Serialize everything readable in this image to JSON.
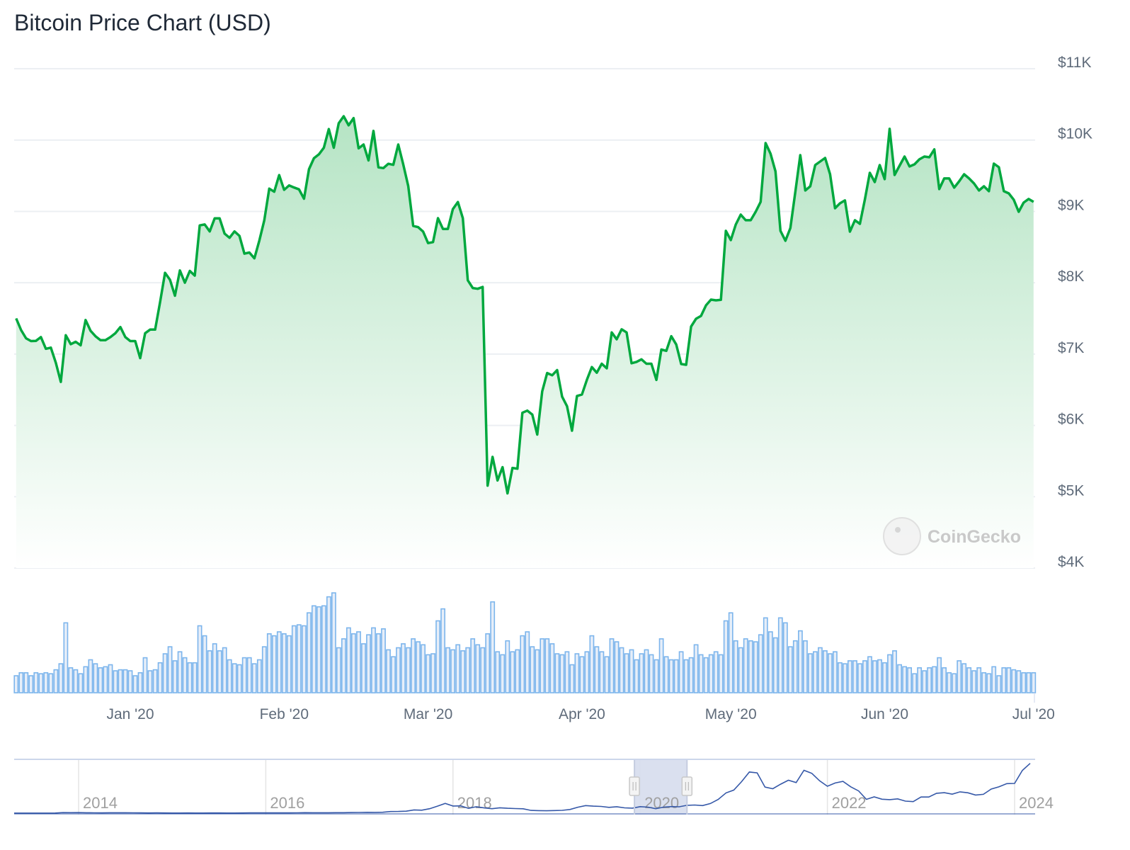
{
  "title": "Bitcoin Price Chart (USD)",
  "watermark": "CoinGecko",
  "colors": {
    "price_line": "#00a83e",
    "area_top": "#b5e4c4",
    "volume_stroke": "#7cb5ec",
    "volume_fill": "#e6eef9",
    "navigator_line": "#3558a8",
    "navigator_selection": "#d6dded",
    "grid": "#eceff3",
    "axis_text": "#5f6b7a"
  },
  "chart_data": [
    {
      "type": "area",
      "title": "Bitcoin Price Chart (USD)",
      "xlabel": "",
      "ylabel": "",
      "ylim": [
        4000,
        11000
      ],
      "y_ticks": [
        "$11K",
        "$10K",
        "$9K",
        "$8K",
        "$7K",
        "$6K",
        "$5K",
        "$4K"
      ],
      "y_tick_values": [
        11000,
        10000,
        9000,
        8000,
        7000,
        6000,
        5000,
        4000
      ],
      "x_ticks": [
        "Jan '20",
        "Feb '20",
        "Mar '20",
        "Apr '20",
        "May '20",
        "Jun '20",
        "Jul '20"
      ],
      "x_tick_dates": [
        "2020-01-01",
        "2020-02-01",
        "2020-03-01",
        "2020-04-01",
        "2020-05-01",
        "2020-06-01",
        "2020-07-01"
      ],
      "xlim": [
        "2019-12-09",
        "2020-07-01"
      ],
      "grid": true,
      "y_axis_side": "right",
      "dates": [
        "2019-12-09",
        "2019-12-10",
        "2019-12-11",
        "2019-12-12",
        "2019-12-13",
        "2019-12-14",
        "2019-12-15",
        "2019-12-16",
        "2019-12-17",
        "2019-12-18",
        "2019-12-19",
        "2019-12-20",
        "2019-12-21",
        "2019-12-22",
        "2019-12-23",
        "2019-12-24",
        "2019-12-25",
        "2019-12-26",
        "2019-12-27",
        "2019-12-28",
        "2019-12-29",
        "2019-12-30",
        "2019-12-31",
        "2020-01-01",
        "2020-01-02",
        "2020-01-03",
        "2020-01-04",
        "2020-01-05",
        "2020-01-06",
        "2020-01-07",
        "2020-01-08",
        "2020-01-09",
        "2020-01-10",
        "2020-01-11",
        "2020-01-12",
        "2020-01-13",
        "2020-01-14",
        "2020-01-15",
        "2020-01-16",
        "2020-01-17",
        "2020-01-18",
        "2020-01-19",
        "2020-01-20",
        "2020-01-21",
        "2020-01-22",
        "2020-01-23",
        "2020-01-24",
        "2020-01-25",
        "2020-01-26",
        "2020-01-27",
        "2020-01-28",
        "2020-01-29",
        "2020-01-30",
        "2020-01-31",
        "2020-02-01",
        "2020-02-02",
        "2020-02-03",
        "2020-02-04",
        "2020-02-05",
        "2020-02-06",
        "2020-02-07",
        "2020-02-08",
        "2020-02-09",
        "2020-02-10",
        "2020-02-11",
        "2020-02-12",
        "2020-02-13",
        "2020-02-14",
        "2020-02-15",
        "2020-02-16",
        "2020-02-17",
        "2020-02-18",
        "2020-02-19",
        "2020-02-20",
        "2020-02-21",
        "2020-02-22",
        "2020-02-23",
        "2020-02-24",
        "2020-02-25",
        "2020-02-26",
        "2020-02-27",
        "2020-02-28",
        "2020-02-29",
        "2020-03-01",
        "2020-03-02",
        "2020-03-03",
        "2020-03-04",
        "2020-03-05",
        "2020-03-06",
        "2020-03-07",
        "2020-03-08",
        "2020-03-09",
        "2020-03-10",
        "2020-03-11",
        "2020-03-12",
        "2020-03-13",
        "2020-03-14",
        "2020-03-15",
        "2020-03-16",
        "2020-03-17",
        "2020-03-18",
        "2020-03-19",
        "2020-03-20",
        "2020-03-21",
        "2020-03-22",
        "2020-03-23",
        "2020-03-24",
        "2020-03-25",
        "2020-03-26",
        "2020-03-27",
        "2020-03-28",
        "2020-03-29",
        "2020-03-30",
        "2020-03-31",
        "2020-04-01",
        "2020-04-02",
        "2020-04-03",
        "2020-04-04",
        "2020-04-05",
        "2020-04-06",
        "2020-04-07",
        "2020-04-08",
        "2020-04-09",
        "2020-04-10",
        "2020-04-11",
        "2020-04-12",
        "2020-04-13",
        "2020-04-14",
        "2020-04-15",
        "2020-04-16",
        "2020-04-17",
        "2020-04-18",
        "2020-04-19",
        "2020-04-20",
        "2020-04-21",
        "2020-04-22",
        "2020-04-23",
        "2020-04-24",
        "2020-04-25",
        "2020-04-26",
        "2020-04-27",
        "2020-04-28",
        "2020-04-29",
        "2020-04-30",
        "2020-05-01",
        "2020-05-02",
        "2020-05-03",
        "2020-05-04",
        "2020-05-05",
        "2020-05-06",
        "2020-05-07",
        "2020-05-08",
        "2020-05-09",
        "2020-05-10",
        "2020-05-11",
        "2020-05-12",
        "2020-05-13",
        "2020-05-14",
        "2020-05-15",
        "2020-05-16",
        "2020-05-17",
        "2020-05-18",
        "2020-05-19",
        "2020-05-20",
        "2020-05-21",
        "2020-05-22",
        "2020-05-23",
        "2020-05-24",
        "2020-05-25",
        "2020-05-26",
        "2020-05-27",
        "2020-05-28",
        "2020-05-29",
        "2020-05-30",
        "2020-05-31",
        "2020-06-01",
        "2020-06-02",
        "2020-06-03",
        "2020-06-04",
        "2020-06-05",
        "2020-06-06",
        "2020-06-07",
        "2020-06-08",
        "2020-06-09",
        "2020-06-10",
        "2020-06-11",
        "2020-06-12",
        "2020-06-13",
        "2020-06-14",
        "2020-06-15",
        "2020-06-16",
        "2020-06-17",
        "2020-06-18",
        "2020-06-19",
        "2020-06-20",
        "2020-06-21",
        "2020-06-22",
        "2020-06-23",
        "2020-06-24",
        "2020-06-25",
        "2020-06-26",
        "2020-06-27",
        "2020-06-28",
        "2020-06-29",
        "2020-06-30",
        "2020-07-01"
      ],
      "price": [
        7500,
        7336,
        7221,
        7182,
        7185,
        7238,
        7074,
        7090,
        6877,
        6609,
        7264,
        7139,
        7172,
        7123,
        7477,
        7326,
        7250,
        7195,
        7195,
        7238,
        7293,
        7379,
        7238,
        7182,
        7182,
        6943,
        7293,
        7343,
        7343,
        7729,
        8139,
        8041,
        7818,
        8172,
        8001,
        8165,
        8100,
        8804,
        8817,
        8719,
        8902,
        8902,
        8689,
        8630,
        8719,
        8657,
        8408,
        8424,
        8342,
        8591,
        8876,
        9319,
        9276,
        9509,
        9302,
        9364,
        9335,
        9309,
        9178,
        9591,
        9745,
        9800,
        9892,
        10154,
        9892,
        10236,
        10334,
        10207,
        10308,
        9884,
        9938,
        9714,
        10128,
        9617,
        9607,
        9668,
        9653,
        9938,
        9661,
        9355,
        8797,
        8779,
        8718,
        8556,
        8570,
        8905,
        8754,
        8754,
        9031,
        9132,
        8905,
        8034,
        7926,
        7915,
        7941,
        5156,
        5559,
        5228,
        5415,
        5048,
        5404,
        5393,
        6178,
        6207,
        6153,
        5872,
        6476,
        6735,
        6703,
        6775,
        6404,
        6268,
        5926,
        6412,
        6433,
        6638,
        6818,
        6739,
        6865,
        6800,
        7304,
        7207,
        7347,
        7304,
        6872,
        6890,
        6926,
        6865,
        6865,
        6638,
        7063,
        7045,
        7250,
        7135,
        6861,
        6850,
        7386,
        7495,
        7535,
        7684,
        7763,
        7753,
        7760,
        8727,
        8598,
        8816,
        8955,
        8876,
        8876,
        8995,
        9134,
        9958,
        9809,
        9561,
        8727,
        8588,
        8766,
        9273,
        9789,
        9293,
        9352,
        9650,
        9700,
        9749,
        9521,
        9044,
        9114,
        9154,
        8717,
        8876,
        8826,
        9164,
        9541,
        9412,
        9650,
        9452,
        10157,
        9511,
        9640,
        9769,
        9630,
        9660,
        9730,
        9769,
        9759,
        9869,
        9313,
        9462,
        9462,
        9333,
        9422,
        9521,
        9462,
        9392,
        9293,
        9352,
        9283,
        9670,
        9620,
        9283,
        9253,
        9164,
        8995,
        9124,
        9174,
        9134
      ],
      "volume_relative_percent": [
        17,
        20,
        20,
        17,
        20,
        19,
        20,
        19,
        23,
        29,
        70,
        25,
        23,
        19,
        26,
        33,
        29,
        25,
        26,
        28,
        22,
        23,
        23,
        22,
        17,
        20,
        35,
        22,
        23,
        30,
        39,
        46,
        32,
        41,
        35,
        30,
        30,
        67,
        57,
        42,
        49,
        42,
        45,
        33,
        29,
        28,
        35,
        35,
        29,
        33,
        46,
        59,
        57,
        61,
        59,
        57,
        67,
        68,
        67,
        80,
        87,
        86,
        87,
        96,
        100,
        45,
        54,
        65,
        59,
        61,
        49,
        58,
        65,
        59,
        64,
        43,
        36,
        45,
        49,
        45,
        54,
        51,
        48,
        38,
        39,
        72,
        84,
        45,
        43,
        48,
        42,
        45,
        54,
        48,
        45,
        59,
        91,
        41,
        38,
        52,
        41,
        43,
        57,
        61,
        46,
        43,
        54,
        54,
        49,
        39,
        38,
        41,
        28,
        39,
        36,
        41,
        57,
        46,
        41,
        36,
        54,
        51,
        45,
        39,
        43,
        33,
        39,
        43,
        38,
        33,
        54,
        36,
        33,
        33,
        41,
        33,
        35,
        48,
        38,
        35,
        38,
        41,
        38,
        72,
        80,
        52,
        45,
        54,
        52,
        51,
        58,
        75,
        61,
        55,
        75,
        70,
        46,
        52,
        62,
        52,
        39,
        41,
        45,
        42,
        39,
        41,
        30,
        29,
        32,
        32,
        29,
        32,
        36,
        32,
        33,
        30,
        38,
        42,
        28,
        26,
        25,
        19,
        25,
        22,
        25,
        26,
        35,
        25,
        20,
        19,
        32,
        29,
        25,
        22,
        25,
        20,
        19,
        26,
        17,
        25,
        25,
        23,
        22,
        20,
        20,
        20
      ]
    },
    {
      "type": "line",
      "title": "",
      "x_ticks": [
        "2014",
        "2016",
        "2018",
        "2020",
        "2022",
        "2024"
      ],
      "selected_range": [
        "2019-12-09",
        "2020-07-01"
      ],
      "dates": [
        "2013-04",
        "2013-05",
        "2013-06",
        "2013-07",
        "2013-08",
        "2013-09",
        "2013-10",
        "2013-11",
        "2013-12",
        "2014-01",
        "2014-02",
        "2014-03",
        "2014-04",
        "2014-05",
        "2014-06",
        "2014-07",
        "2014-08",
        "2014-09",
        "2014-10",
        "2014-11",
        "2014-12",
        "2015-01",
        "2015-02",
        "2015-03",
        "2015-04",
        "2015-05",
        "2015-06",
        "2015-07",
        "2015-08",
        "2015-09",
        "2015-10",
        "2015-11",
        "2015-12",
        "2016-01",
        "2016-02",
        "2016-03",
        "2016-04",
        "2016-05",
        "2016-06",
        "2016-07",
        "2016-08",
        "2016-09",
        "2016-10",
        "2016-11",
        "2016-12",
        "2017-01",
        "2017-02",
        "2017-03",
        "2017-04",
        "2017-05",
        "2017-06",
        "2017-07",
        "2017-08",
        "2017-09",
        "2017-10",
        "2017-11",
        "2017-12",
        "2018-01",
        "2018-02",
        "2018-03",
        "2018-04",
        "2018-05",
        "2018-06",
        "2018-07",
        "2018-08",
        "2018-09",
        "2018-10",
        "2018-11",
        "2018-12",
        "2019-01",
        "2019-02",
        "2019-03",
        "2019-04",
        "2019-05",
        "2019-06",
        "2019-07",
        "2019-08",
        "2019-09",
        "2019-10",
        "2019-11",
        "2019-12",
        "2020-01",
        "2020-02",
        "2020-03",
        "2020-04",
        "2020-05",
        "2020-06",
        "2020-07",
        "2020-08",
        "2020-09",
        "2020-10",
        "2020-11",
        "2020-12",
        "2021-01",
        "2021-02",
        "2021-03",
        "2021-04",
        "2021-05",
        "2021-06",
        "2021-07",
        "2021-08",
        "2021-09",
        "2021-10",
        "2021-11",
        "2021-12",
        "2022-01",
        "2022-02",
        "2022-03",
        "2022-04",
        "2022-05",
        "2022-06",
        "2022-07",
        "2022-08",
        "2022-09",
        "2022-10",
        "2022-11",
        "2022-12",
        "2023-01",
        "2023-02",
        "2023-03",
        "2023-04",
        "2023-05",
        "2023-06",
        "2023-07",
        "2023-08",
        "2023-09",
        "2023-10",
        "2023-11",
        "2023-12",
        "2024-01",
        "2024-02",
        "2024-03"
      ],
      "price": [
        100,
        120,
        100,
        90,
        110,
        130,
        180,
        800,
        750,
        850,
        600,
        550,
        450,
        600,
        640,
        600,
        480,
        390,
        340,
        370,
        320,
        220,
        250,
        260,
        230,
        230,
        260,
        280,
        230,
        240,
        310,
        370,
        430,
        370,
        430,
        415,
        450,
        530,
        670,
        620,
        575,
        610,
        700,
        740,
        960,
        970,
        1190,
        1070,
        1350,
        2300,
        2450,
        2800,
        4700,
        4300,
        6400,
        10000,
        14000,
        10200,
        10400,
        6900,
        9200,
        7500,
        6400,
        7700,
        7000,
        6600,
        6300,
        4000,
        3700,
        3450,
        3800,
        4100,
        5300,
        8500,
        10800,
        10000,
        9600,
        8300,
        9200,
        7600,
        7200,
        9350,
        8600,
        6400,
        8600,
        9450,
        9150,
        11300,
        11700,
        10800,
        13800,
        19700,
        29000,
        33100,
        45100,
        58900,
        57700,
        37300,
        35000,
        41500,
        47100,
        43800,
        61300,
        57000,
        46300,
        38500,
        43200,
        45500,
        37700,
        31800,
        19800,
        23300,
        20000,
        19400,
        20500,
        17200,
        16500,
        23100,
        23100,
        28500,
        29300,
        27200,
        30500,
        29200,
        26000,
        27000,
        34500,
        37700,
        42300,
        42600,
        61200,
        71300
      ]
    }
  ]
}
